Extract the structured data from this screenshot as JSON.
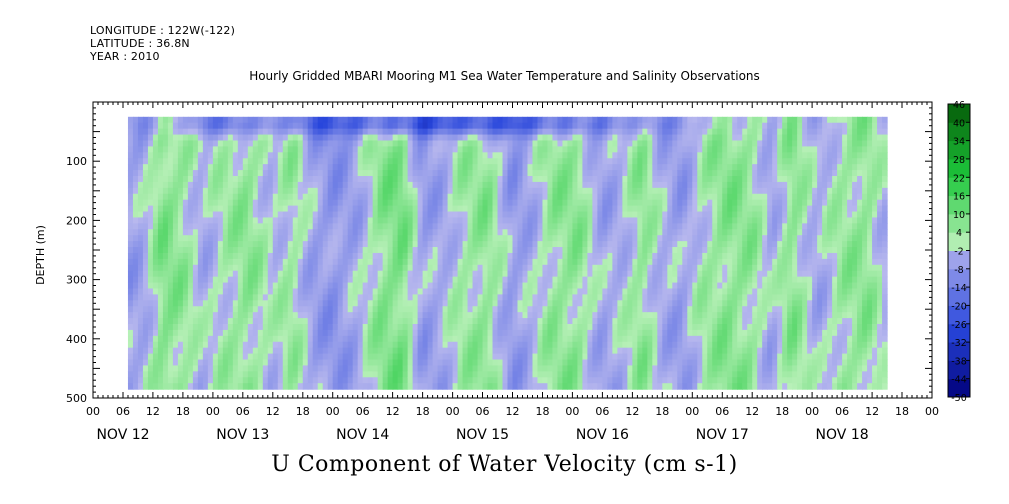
{
  "header": {
    "longitude": "LONGITUDE : 122W(-122)",
    "latitude": "LATITUDE : 36.8N",
    "year": "YEAR : 2010"
  },
  "title": "Hourly Gridded MBARI Mooring M1 Sea Water Temperature and Salinity Observations",
  "caption": "U Component of Water Velocity (cm s-1)",
  "chart_data": {
    "type": "heatmap",
    "title": "Hourly Gridded MBARI Mooring M1 Sea Water Temperature and Salinity Observations",
    "xlabel": "",
    "ylabel": "DEPTH (m)",
    "variable": "U Component of Water Velocity (cm s-1)",
    "x_unit": "hours since Nov 12 00:00, 2010",
    "xlim": [
      0,
      168
    ],
    "ylim": [
      500,
      0
    ],
    "y_inverted": true,
    "data_extent": {
      "x": [
        7,
        159
      ],
      "y": [
        25,
        485
      ]
    },
    "y_ticks": [
      100,
      200,
      300,
      400,
      500
    ],
    "y_tick_labels": [
      "100",
      "200",
      "300",
      "400",
      "500"
    ],
    "x_tick_hours": [
      "00",
      "06",
      "12",
      "18"
    ],
    "day_labels": [
      "NOV 12",
      "NOV 13",
      "NOV 14",
      "NOV 15",
      "NOV 16",
      "NOV 17",
      "NOV 18"
    ],
    "colorbar": {
      "levels": [
        -50,
        -44,
        -38,
        -32,
        -26,
        -20,
        -14,
        -8,
        -2,
        4,
        10,
        16,
        22,
        28,
        34,
        40,
        46
      ],
      "tick_labels": [
        "46",
        "40",
        "34",
        "28",
        "22",
        "16",
        "10",
        "4",
        "-2",
        "-8",
        "-14",
        "-20",
        "-26",
        "-32",
        "-38",
        "-44",
        "-50"
      ],
      "ramp_negative_end": "#00007a",
      "ramp_mid_blue": "#b8b8ee",
      "ramp_mid_green": "#b8f0b8",
      "ramp_positive_end": "#004a00"
    },
    "column_profiles": [
      {
        "x": 7,
        "u": -6
      },
      {
        "x": 10,
        "u": -4
      },
      {
        "x": 14,
        "u": 8
      },
      {
        "x": 18,
        "u": 5
      },
      {
        "x": 22,
        "u": -3
      },
      {
        "x": 26,
        "u": 2
      },
      {
        "x": 31,
        "u": 6
      },
      {
        "x": 36,
        "u": -1
      },
      {
        "x": 40,
        "u": 4
      },
      {
        "x": 44,
        "u": -5
      },
      {
        "x": 48,
        "u": -8
      },
      {
        "x": 53,
        "u": -4
      },
      {
        "x": 58,
        "u": 7
      },
      {
        "x": 62,
        "u": 9
      },
      {
        "x": 66,
        "u": -6
      },
      {
        "x": 70,
        "u": -4
      },
      {
        "x": 74,
        "u": 3
      },
      {
        "x": 79,
        "u": 6
      },
      {
        "x": 84,
        "u": -7
      },
      {
        "x": 88,
        "u": -3
      },
      {
        "x": 92,
        "u": 5
      },
      {
        "x": 97,
        "u": 6
      },
      {
        "x": 102,
        "u": -5
      },
      {
        "x": 106,
        "u": -2
      },
      {
        "x": 110,
        "u": 6
      },
      {
        "x": 114,
        "u": -3
      },
      {
        "x": 118,
        "u": -6
      },
      {
        "x": 122,
        "u": 2
      },
      {
        "x": 127,
        "u": 7
      },
      {
        "x": 132,
        "u": 5
      },
      {
        "x": 136,
        "u": -4
      },
      {
        "x": 140,
        "u": 7
      },
      {
        "x": 145,
        "u": -4
      },
      {
        "x": 150,
        "u": 4
      },
      {
        "x": 155,
        "u": 6
      },
      {
        "x": 159,
        "u": -3
      }
    ],
    "near_surface_jet": {
      "depth": 35,
      "u": -24
    }
  },
  "colors": {
    "background": "#ffffff",
    "axis": "#000000"
  }
}
